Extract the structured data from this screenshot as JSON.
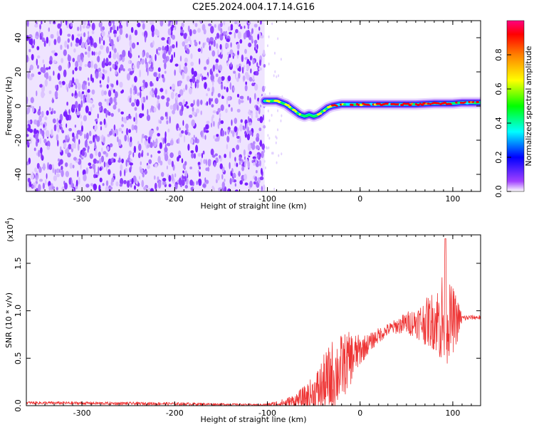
{
  "title": "C2E5.2024.004.17.14.G16",
  "chart_data": [
    {
      "type": "heatmap",
      "xlabel": "Height of straight line (km)",
      "ylabel": "Frequency (Hz)",
      "xlim": [
        -360,
        130
      ],
      "ylim": [
        -50,
        50
      ],
      "xticks": [
        -300,
        -200,
        -100,
        0,
        100
      ],
      "xtick_labels": [
        "-300",
        "-200",
        "-100",
        "0",
        "100"
      ],
      "yticks": [
        -40,
        -20,
        0,
        20,
        40
      ],
      "ytick_labels": [
        "-40",
        "-20",
        "0",
        "20",
        "40"
      ],
      "noise_region_x": [
        -360,
        -103
      ],
      "signal_trace": {
        "x": [
          -103,
          -95,
          -90,
          -85,
          -80,
          -75,
          -70,
          -65,
          -60,
          -55,
          -50,
          -45,
          -40,
          -35,
          -30,
          -20,
          -10,
          0,
          20,
          40,
          60,
          80,
          90,
          100,
          110,
          120,
          130
        ],
        "frequency": [
          3,
          3,
          3,
          2,
          1,
          -1,
          -3,
          -5,
          -6,
          -5,
          -6,
          -5,
          -3,
          -1,
          0,
          1,
          1,
          1,
          1,
          1,
          1,
          1.5,
          1.5,
          1.5,
          2,
          2,
          2
        ],
        "peak_amplitude_range": [
          -30,
          130
        ]
      },
      "colorbar": {
        "label": "Normalized spectral amplitude",
        "range": [
          0,
          1
        ],
        "ticks": [
          0.0,
          0.2,
          0.4,
          0.6,
          0.8
        ],
        "tick_labels": [
          "0.0",
          "0.2",
          "0.4",
          "0.6",
          "0.8"
        ],
        "colors": [
          "#ffffff",
          "#8000ff",
          "#0000ff",
          "#00ffff",
          "#00ff00",
          "#ffff00",
          "#ff8000",
          "#ff0000",
          "#ff0080"
        ]
      }
    },
    {
      "type": "line",
      "xlabel": "Height of straight line (km)",
      "ylabel": "SNR (10 * v/v)",
      "scale_label": "(x10",
      "scale_exponent": "4",
      "scale_close": ")",
      "xlim": [
        -360,
        130
      ],
      "ylim": [
        0,
        1.8
      ],
      "xticks": [
        -300,
        -200,
        -100,
        0,
        100
      ],
      "xtick_labels": [
        "-300",
        "-200",
        "-100",
        "0",
        "100"
      ],
      "yticks": [
        0,
        0.5,
        1.0,
        1.5
      ],
      "ytick_labels": [
        "0.0",
        "0.5",
        "1.0",
        "1.5"
      ],
      "color": "#ee3333",
      "envelope": {
        "x": [
          -360,
          -200,
          -110,
          -100,
          -90,
          -80,
          -70,
          -60,
          -50,
          -40,
          -30,
          -20,
          -10,
          0,
          10,
          20,
          30,
          40,
          50,
          60,
          70,
          80,
          85,
          90,
          95,
          100,
          105,
          110,
          120,
          130
        ],
        "base": [
          0.03,
          0.02,
          0.01,
          0.01,
          0.02,
          0.03,
          0.05,
          0.08,
          0.12,
          0.2,
          0.3,
          0.4,
          0.5,
          0.58,
          0.66,
          0.74,
          0.8,
          0.84,
          0.87,
          0.88,
          0.88,
          0.9,
          0.9,
          0.88,
          0.9,
          0.9,
          0.9,
          0.92,
          0.93,
          0.93
        ],
        "spread": [
          0.02,
          0.02,
          0.01,
          0.02,
          0.04,
          0.06,
          0.1,
          0.16,
          0.25,
          0.4,
          0.5,
          0.45,
          0.35,
          0.2,
          0.12,
          0.1,
          0.08,
          0.1,
          0.15,
          0.2,
          0.3,
          0.4,
          0.5,
          0.8,
          0.5,
          0.45,
          0.3,
          0.05,
          0.03,
          0.03
        ]
      },
      "peak": {
        "x": 92,
        "y": 1.76
      }
    }
  ]
}
